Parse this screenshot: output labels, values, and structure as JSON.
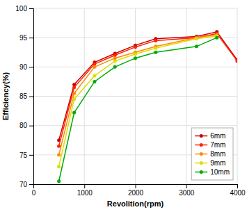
{
  "chart_data": {
    "type": "line",
    "xlabel": "Revolition(rpm)",
    "ylabel": "Efficiency(%)",
    "x": [
      500,
      800,
      1200,
      1600,
      2000,
      2400,
      3200,
      3600,
      4000
    ],
    "series": [
      {
        "name": "6mm",
        "color": "#cc0000",
        "marker": "circle",
        "values": [
          77.5,
          87.0,
          90.8,
          92.3,
          93.7,
          94.8,
          95.2,
          96.0,
          91.2
        ]
      },
      {
        "name": "7mm",
        "color": "#ff2200",
        "marker": "circle",
        "values": [
          76.5,
          86.5,
          90.5,
          92.0,
          93.4,
          94.5,
          95.0,
          95.7,
          91.0
        ]
      },
      {
        "name": "8mm",
        "color": "#ff8800",
        "marker": "circle",
        "values": [
          75.0,
          85.5,
          90.0,
          91.5,
          92.5,
          93.5,
          95.0,
          95.5,
          null
        ]
      },
      {
        "name": "9mm",
        "color": "#dddd00",
        "marker": "circle",
        "values": [
          73.0,
          84.5,
          88.5,
          91.0,
          92.2,
          93.2,
          94.8,
          95.3,
          null
        ]
      },
      {
        "name": "10mm",
        "color": "#00aa00",
        "marker": "circle",
        "values": [
          70.5,
          82.2,
          87.5,
          90.0,
          91.5,
          92.5,
          93.5,
          95.0,
          null
        ]
      }
    ],
    "xlim": [
      0,
      4000
    ],
    "ylim": [
      70,
      100
    ],
    "xticks": [
      0,
      1000,
      2000,
      3000,
      4000
    ],
    "yticks": [
      70,
      75,
      80,
      85,
      90,
      95,
      100
    ],
    "grid": true,
    "legend": "lower right"
  }
}
